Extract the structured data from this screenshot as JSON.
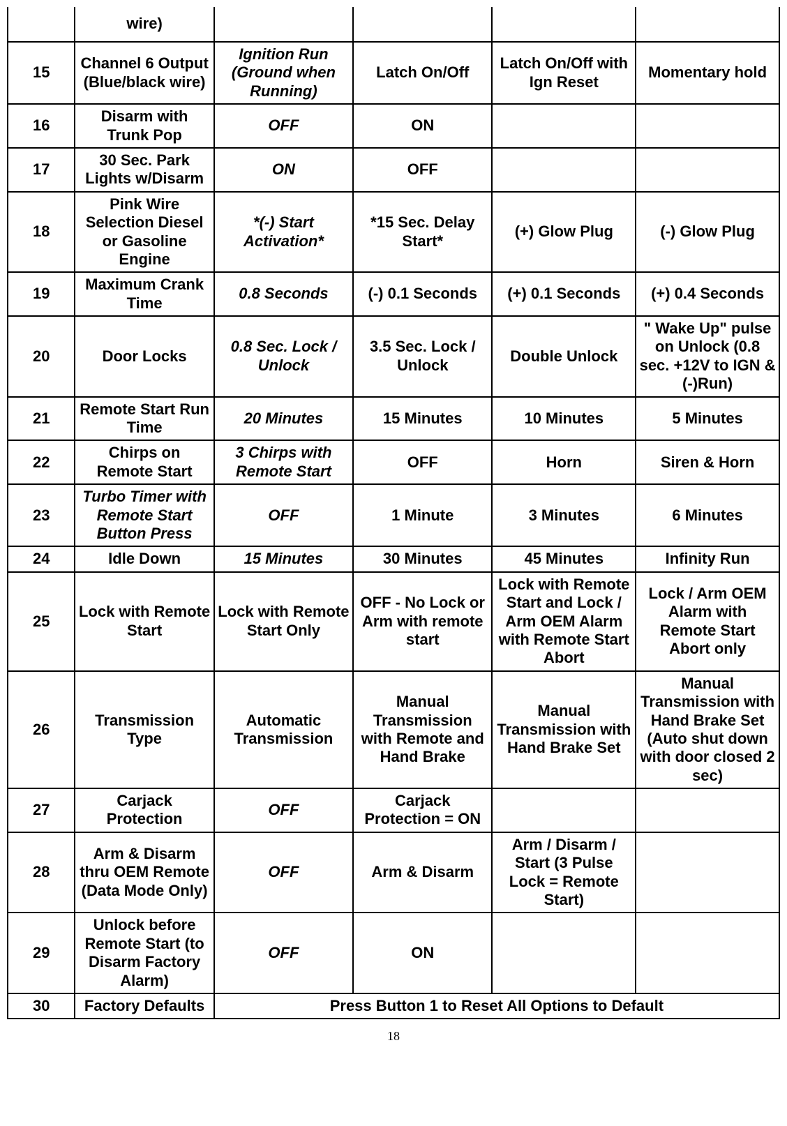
{
  "page_number": "18",
  "rows": [
    {
      "partial_top": true,
      "num": "",
      "c1": {
        "text": "wire)",
        "bold": true,
        "italic": false
      },
      "c2": {
        "text": "",
        "bold": false,
        "italic": false
      },
      "c3": {
        "text": "",
        "bold": false,
        "italic": false
      },
      "c4": {
        "text": "",
        "bold": false,
        "italic": false
      },
      "c5": {
        "text": "",
        "bold": false,
        "italic": false
      }
    },
    {
      "num": "15",
      "c1": {
        "text": "Channel 6 Output (Blue/black wire)",
        "bold": true,
        "italic": false
      },
      "c2": {
        "text": "Ignition Run (Ground when Running)",
        "bold": true,
        "italic": true
      },
      "c3": {
        "text": "Latch On/Off",
        "bold": true,
        "italic": false
      },
      "c4": {
        "text": "Latch On/Off with Ign Reset",
        "bold": true,
        "italic": false
      },
      "c5": {
        "text": "Momentary hold",
        "bold": true,
        "italic": false
      }
    },
    {
      "num": "16",
      "c1": {
        "text": "Disarm with Trunk Pop",
        "bold": true,
        "italic": false
      },
      "c2": {
        "text": "OFF",
        "bold": true,
        "italic": true
      },
      "c3": {
        "text": "ON",
        "bold": true,
        "italic": false
      },
      "c4": {
        "text": "",
        "bold": false,
        "italic": false
      },
      "c5": {
        "text": "",
        "bold": false,
        "italic": false
      }
    },
    {
      "num": "17",
      "c1": {
        "text": "30 Sec. Park Lights w/Disarm",
        "bold": true,
        "italic": false
      },
      "c2": {
        "text": "ON",
        "bold": true,
        "italic": true
      },
      "c3": {
        "text": "OFF",
        "bold": true,
        "italic": false
      },
      "c4": {
        "text": "",
        "bold": false,
        "italic": false
      },
      "c5": {
        "text": "",
        "bold": false,
        "italic": false
      }
    },
    {
      "num": "18",
      "c1": {
        "text": "Pink Wire Selection Diesel or Gasoline Engine",
        "bold": true,
        "italic": false
      },
      "c2": {
        "text": "*(-) Start Activation*",
        "bold": true,
        "italic": true
      },
      "c3": {
        "text": "*15 Sec. Delay Start*",
        "bold": true,
        "italic": false
      },
      "c4": {
        "text": "(+) Glow Plug",
        "bold": true,
        "italic": false
      },
      "c5": {
        "text": "(-) Glow Plug",
        "bold": true,
        "italic": false
      }
    },
    {
      "num": "19",
      "c1": {
        "text": "Maximum Crank Time",
        "bold": true,
        "italic": false
      },
      "c2": {
        "text": "0.8 Seconds",
        "bold": true,
        "italic": true
      },
      "c3": {
        "text": "(-) 0.1 Seconds",
        "bold": true,
        "italic": false
      },
      "c4": {
        "text": "(+) 0.1 Seconds",
        "bold": true,
        "italic": false
      },
      "c5": {
        "text": "(+) 0.4 Seconds",
        "bold": true,
        "italic": false
      }
    },
    {
      "num": "20",
      "c1": {
        "text": "Door Locks",
        "bold": true,
        "italic": false
      },
      "c2": {
        "text": "0.8 Sec. Lock / Unlock",
        "bold": true,
        "italic": true
      },
      "c3": {
        "text": "3.5 Sec. Lock / Unlock",
        "bold": true,
        "italic": false
      },
      "c4": {
        "text": "Double Unlock",
        "bold": true,
        "italic": false
      },
      "c5": {
        "text": "\"  Wake Up\" pulse on Unlock  (0.8 sec. +12V to IGN & (-)Run)",
        "bold": true,
        "italic": false
      }
    },
    {
      "num": "21",
      "c1": {
        "text": "Remote Start Run Time",
        "bold": true,
        "italic": false
      },
      "c2": {
        "text": "20 Minutes",
        "bold": true,
        "italic": true
      },
      "c3": {
        "text": "15 Minutes",
        "bold": true,
        "italic": false
      },
      "c4": {
        "text": "10 Minutes",
        "bold": true,
        "italic": false
      },
      "c5": {
        "text": "5 Minutes",
        "bold": true,
        "italic": false
      }
    },
    {
      "num": "22",
      "c1": {
        "text": "Chirps on Remote Start",
        "bold": true,
        "italic": false
      },
      "c2": {
        "text": "3 Chirps with Remote Start",
        "bold": true,
        "italic": true
      },
      "c3": {
        "text": "OFF",
        "bold": true,
        "italic": false
      },
      "c4": {
        "text": "Horn",
        "bold": true,
        "italic": false
      },
      "c5": {
        "text": "Siren & Horn",
        "bold": true,
        "italic": false
      }
    },
    {
      "num": "23",
      "c1": {
        "text": "Turbo Timer with Remote Start Button Press",
        "bold": true,
        "italic": true
      },
      "c2": {
        "text": "OFF",
        "bold": true,
        "italic": true
      },
      "c3": {
        "text": "1 Minute",
        "bold": true,
        "italic": false
      },
      "c4": {
        "text": "3 Minutes",
        "bold": true,
        "italic": false
      },
      "c5": {
        "text": "6 Minutes",
        "bold": true,
        "italic": false
      }
    },
    {
      "num": "24",
      "c1": {
        "text": "Idle Down",
        "bold": true,
        "italic": false
      },
      "c2": {
        "text": "15 Minutes",
        "bold": true,
        "italic": true
      },
      "c3": {
        "text": "30 Minutes",
        "bold": true,
        "italic": false
      },
      "c4": {
        "text": "45 Minutes",
        "bold": true,
        "italic": false
      },
      "c5": {
        "text": "Infinity Run",
        "bold": true,
        "italic": false
      }
    },
    {
      "num": "25",
      "c1": {
        "text": "Lock with Remote Start",
        "bold": true,
        "italic": false
      },
      "c2": {
        "text": "Lock with Remote Start Only",
        "bold": true,
        "italic": false
      },
      "c3": {
        "text": "OFF - No Lock or Arm with remote start",
        "bold": true,
        "italic": false
      },
      "c4": {
        "text": "Lock with Remote Start and Lock / Arm OEM Alarm with Remote Start Abort",
        "bold": true,
        "italic": false
      },
      "c5": {
        "text": "Lock / Arm OEM Alarm with Remote Start Abort only",
        "bold": true,
        "italic": false
      }
    },
    {
      "num": "26",
      "c1": {
        "text": "Transmission Type",
        "bold": true,
        "italic": false
      },
      "c2": {
        "text": "Automatic Transmission",
        "bold": true,
        "italic": false
      },
      "c3": {
        "text": "Manual Transmission with Remote and Hand Brake",
        "bold": true,
        "italic": false
      },
      "c4": {
        "text": "Manual Transmission with Hand Brake Set",
        "bold": true,
        "italic": false
      },
      "c5": {
        "text": "Manual Transmission with Hand Brake Set (Auto shut down with door closed 2 sec)",
        "bold": true,
        "italic": false
      }
    },
    {
      "num": "27",
      "c1": {
        "text": "Carjack Protection",
        "bold": true,
        "italic": false
      },
      "c2": {
        "text": "OFF",
        "bold": true,
        "italic": true
      },
      "c3": {
        "text": "Carjack Protection = ON",
        "bold": true,
        "italic": false
      },
      "c4": {
        "text": "",
        "bold": false,
        "italic": false
      },
      "c5": {
        "text": "",
        "bold": false,
        "italic": false
      }
    },
    {
      "num": "28",
      "c1": {
        "text": "Arm & Disarm thru OEM Remote (Data Mode Only)",
        "bold": true,
        "italic": false
      },
      "c2": {
        "text": "OFF",
        "bold": true,
        "italic": true
      },
      "c3": {
        "text": "Arm & Disarm",
        "bold": true,
        "italic": false
      },
      "c4": {
        "text": "Arm / Disarm / Start\n(3 Pulse Lock = Remote Start)",
        "bold": true,
        "italic": false
      },
      "c5": {
        "text": "",
        "bold": false,
        "italic": false
      }
    },
    {
      "num": "29",
      "c1": {
        "text": "Unlock before Remote Start (to Disarm Factory Alarm)",
        "bold": true,
        "italic": false
      },
      "c2": {
        "text": "OFF",
        "bold": true,
        "italic": true
      },
      "c3": {
        "text": "ON",
        "bold": true,
        "italic": false
      },
      "c4": {
        "text": "",
        "bold": false,
        "italic": false
      },
      "c5": {
        "text": "",
        "bold": false,
        "italic": false
      }
    },
    {
      "num": "30",
      "c1": {
        "text": "Factory Defaults",
        "bold": true,
        "italic": false
      },
      "merged": {
        "text": "Press Button 1 to Reset All Options to Default",
        "bold": true,
        "italic": false
      }
    }
  ]
}
